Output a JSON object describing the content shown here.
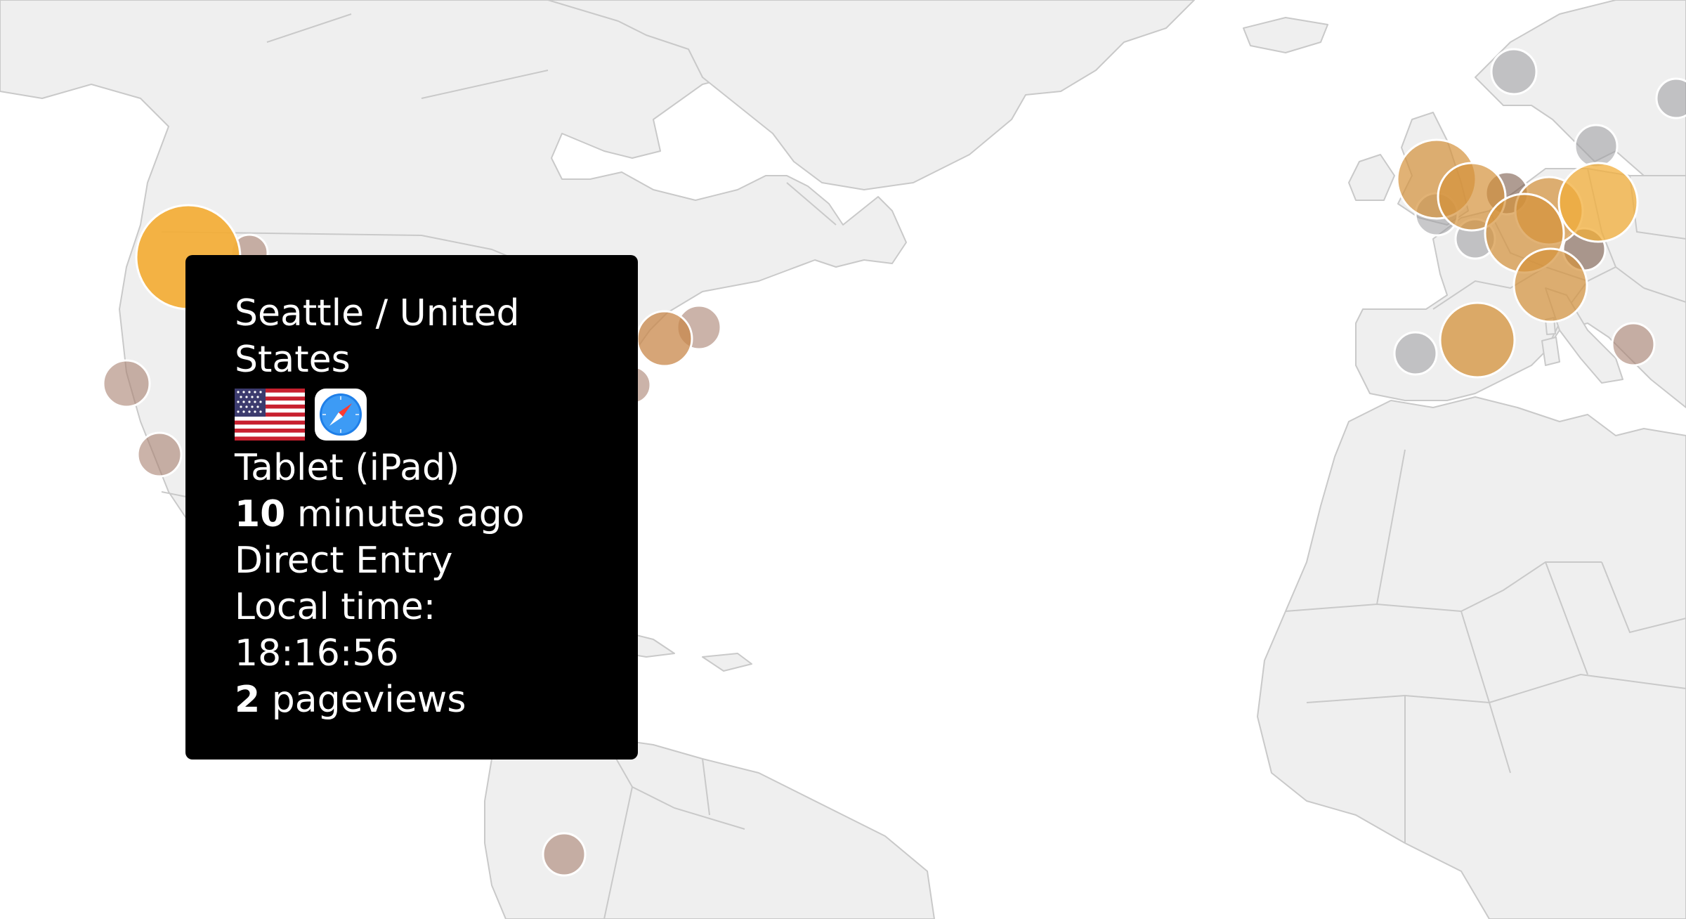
{
  "tooltip": {
    "title": "Seattle / United States",
    "device": "Tablet (iPad)",
    "time_ago_value": "10",
    "time_ago_unit": "minutes ago",
    "referrer": "Direct Entry",
    "local_time_label": "Local time:",
    "local_time_value": "18:16:56",
    "pageviews_value": "2",
    "pageviews_unit": "pageviews",
    "icons": [
      "united-states-flag-icon",
      "safari-browser-icon"
    ]
  },
  "colors": {
    "land": "#efefef",
    "border": "#c9c9c9",
    "marker_active": "#f2ae3a",
    "marker_recent": "#d4913a",
    "marker_older": "#a88070",
    "marker_idle": "#9a9a9e",
    "tooltip_bg": "#000000"
  }
}
